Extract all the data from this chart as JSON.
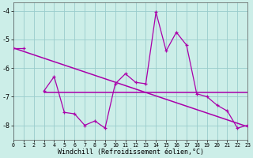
{
  "x": [
    0,
    1,
    2,
    3,
    4,
    5,
    6,
    7,
    8,
    9,
    10,
    11,
    12,
    13,
    14,
    15,
    16,
    17,
    18,
    19,
    20,
    21,
    22,
    23
  ],
  "line1": [
    -5.3,
    -5.3,
    null,
    -6.8,
    -6.3,
    -7.55,
    -7.6,
    -8.0,
    -7.85,
    -8.1,
    -6.55,
    -6.2,
    -6.5,
    -6.55,
    -4.05,
    -5.4,
    -4.75,
    -5.2,
    -6.9,
    -7.0,
    -7.3,
    -7.5,
    -8.1,
    -8.0
  ],
  "line2_x": [
    3,
    23
  ],
  "line2_y": [
    -6.85,
    -6.85
  ],
  "line3_x": [
    0,
    23
  ],
  "line3_y": [
    -5.3,
    -8.05
  ],
  "line_color": "#aa00aa",
  "bg_color": "#cceee8",
  "grid_color": "#99cccc",
  "xlabel": "Windchill (Refroidissement éolien,°C)",
  "xlim": [
    0,
    23
  ],
  "ylim": [
    -8.5,
    -3.7
  ],
  "yticks": [
    -8,
    -7,
    -6,
    -5,
    -4
  ],
  "xticks": [
    0,
    1,
    2,
    3,
    4,
    5,
    6,
    7,
    8,
    9,
    10,
    11,
    12,
    13,
    14,
    15,
    16,
    17,
    18,
    19,
    20,
    21,
    22,
    23
  ]
}
